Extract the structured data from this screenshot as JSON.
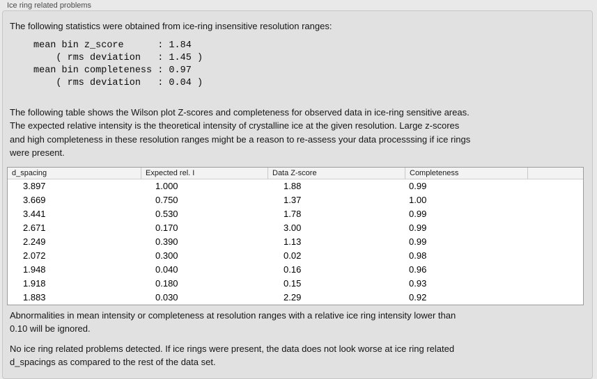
{
  "header": {
    "title": "Ice ring related problems"
  },
  "intro": "The following statistics were obtained from ice-ring insensitive resolution ranges:",
  "stats_text": "mean bin z_score      : 1.84\n    ( rms deviation   : 1.45 )\nmean bin completeness : 0.97\n    ( rms deviation   : 0.04 )",
  "stats": {
    "mean_bin_z_score": "1.84",
    "z_score_rms_deviation": "1.45",
    "mean_bin_completeness": "0.97",
    "completeness_rms_deviation": "0.04"
  },
  "description": "The following table shows the Wilson plot Z-scores and completeness for observed data in ice-ring sensitive areas.\nThe expected relative intensity is the theoretical intensity of crystalline ice at the given resolution. Large z-scores\nand high completeness in these resolution ranges might be a reason to re-assess your data processsing if ice rings\nwere present.",
  "table": {
    "columns": [
      "d_spacing",
      "Expected rel. I",
      "Data Z-score",
      "Completeness"
    ],
    "rows": [
      [
        "3.897",
        "1.000",
        "1.88",
        "0.99"
      ],
      [
        "3.669",
        "0.750",
        "1.37",
        "1.00"
      ],
      [
        "3.441",
        "0.530",
        "1.78",
        "0.99"
      ],
      [
        "2.671",
        "0.170",
        "3.00",
        "0.99"
      ],
      [
        "2.249",
        "0.390",
        "1.13",
        "0.99"
      ],
      [
        "2.072",
        "0.300",
        "0.02",
        "0.98"
      ],
      [
        "1.948",
        "0.040",
        "0.16",
        "0.96"
      ],
      [
        "1.918",
        "0.180",
        "0.15",
        "0.93"
      ],
      [
        "1.883",
        "0.030",
        "2.29",
        "0.92"
      ]
    ]
  },
  "notes": {
    "ignore_rule": "Abnormalities in mean intensity or completeness at resolution ranges with a relative ice ring intensity lower than\n0.10 will be ignored.",
    "conclusion": "No ice ring related problems detected. If ice rings were present, the data does not look worse at ice ring related\nd_spacings as compared to the rest of the data set."
  }
}
